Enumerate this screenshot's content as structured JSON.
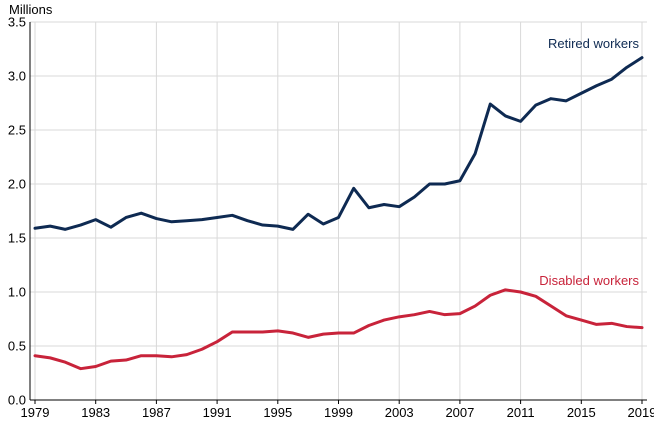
{
  "chart_data": {
    "type": "line",
    "title": "",
    "xlabel": "",
    "ylabel": "Millions",
    "ylim": [
      0,
      3.5
    ],
    "y_ticks": [
      "0.0",
      "0.5",
      "1.0",
      "1.5",
      "2.0",
      "2.5",
      "3.0",
      "3.5"
    ],
    "x_ticks": [
      "1979",
      "1983",
      "1987",
      "1991",
      "1995",
      "1999",
      "2003",
      "2007",
      "2011",
      "2015",
      "2019"
    ],
    "grid": true,
    "x": [
      1979,
      1980,
      1981,
      1982,
      1983,
      1984,
      1985,
      1986,
      1987,
      1988,
      1989,
      1990,
      1991,
      1992,
      1993,
      1994,
      1995,
      1996,
      1997,
      1998,
      1999,
      2000,
      2001,
      2002,
      2003,
      2004,
      2005,
      2006,
      2007,
      2008,
      2009,
      2010,
      2011,
      2012,
      2013,
      2014,
      2015,
      2016,
      2017,
      2018,
      2019
    ],
    "series": [
      {
        "name": "Retired workers",
        "color": "#0e2a52",
        "values": [
          1.59,
          1.61,
          1.58,
          1.62,
          1.67,
          1.6,
          1.69,
          1.73,
          1.68,
          1.65,
          1.66,
          1.67,
          1.69,
          1.71,
          1.66,
          1.62,
          1.61,
          1.58,
          1.72,
          1.63,
          1.69,
          1.96,
          1.78,
          1.81,
          1.79,
          1.88,
          2.0,
          2.0,
          2.03,
          2.28,
          2.74,
          2.63,
          2.58,
          2.73,
          2.79,
          2.77,
          2.84,
          2.91,
          2.97,
          3.08,
          3.17
        ]
      },
      {
        "name": "Disabled workers",
        "color": "#c8233a",
        "values": [
          0.41,
          0.39,
          0.35,
          0.29,
          0.31,
          0.36,
          0.37,
          0.41,
          0.41,
          0.4,
          0.42,
          0.47,
          0.54,
          0.63,
          0.63,
          0.63,
          0.64,
          0.62,
          0.58,
          0.61,
          0.62,
          0.62,
          0.69,
          0.74,
          0.77,
          0.79,
          0.82,
          0.79,
          0.8,
          0.87,
          0.97,
          1.02,
          1.0,
          0.96,
          0.87,
          0.78,
          0.74,
          0.7,
          0.71,
          0.68,
          0.67
        ]
      }
    ]
  }
}
